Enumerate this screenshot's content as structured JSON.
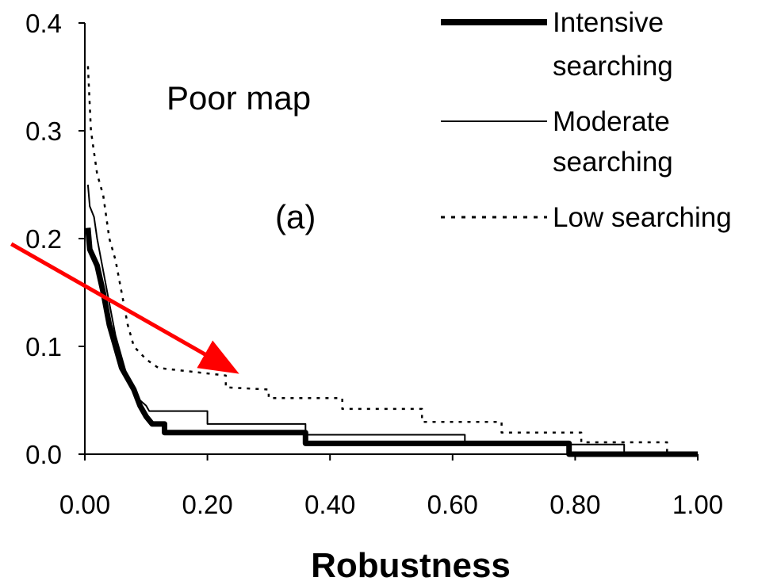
{
  "chart_data": {
    "type": "line",
    "xlabel": "Robustness",
    "ylabel": "",
    "xlim": [
      0,
      1
    ],
    "ylim": [
      0,
      0.4
    ],
    "x_ticks": [
      "0.00",
      "0.20",
      "0.40",
      "0.60",
      "0.80",
      "1.00"
    ],
    "y_ticks": [
      "0.0",
      "0.1",
      "0.2",
      "0.3",
      "0.4"
    ],
    "grid": false,
    "legend_position": "top-right",
    "annotations": [
      {
        "id": "poor_map",
        "text": "Poor map"
      },
      {
        "id": "panel",
        "text": "(a)"
      }
    ],
    "arrow": {
      "from": [
        -0.12,
        0.195
      ],
      "to": [
        0.235,
        0.08
      ],
      "color": "#ff0000"
    },
    "series": [
      {
        "name": "Intensive searching",
        "style": "thick",
        "color": "#000000",
        "points": [
          [
            0.005,
            0.21
          ],
          [
            0.008,
            0.19
          ],
          [
            0.02,
            0.175
          ],
          [
            0.03,
            0.15
          ],
          [
            0.04,
            0.12
          ],
          [
            0.05,
            0.1
          ],
          [
            0.06,
            0.08
          ],
          [
            0.07,
            0.07
          ],
          [
            0.08,
            0.06
          ],
          [
            0.09,
            0.045
          ],
          [
            0.1,
            0.035
          ],
          [
            0.11,
            0.028
          ],
          [
            0.13,
            0.028
          ],
          [
            0.13,
            0.02
          ],
          [
            0.36,
            0.02
          ],
          [
            0.36,
            0.01
          ],
          [
            0.79,
            0.01
          ],
          [
            0.79,
            0.0
          ],
          [
            1.0,
            0.0
          ]
        ]
      },
      {
        "name": "Moderate searching",
        "style": "thin",
        "color": "#000000",
        "points": [
          [
            0.005,
            0.25
          ],
          [
            0.008,
            0.23
          ],
          [
            0.015,
            0.22
          ],
          [
            0.02,
            0.2
          ],
          [
            0.03,
            0.17
          ],
          [
            0.04,
            0.14
          ],
          [
            0.05,
            0.11
          ],
          [
            0.06,
            0.09
          ],
          [
            0.07,
            0.07
          ],
          [
            0.08,
            0.06
          ],
          [
            0.09,
            0.05
          ],
          [
            0.1,
            0.045
          ],
          [
            0.105,
            0.04
          ],
          [
            0.2,
            0.04
          ],
          [
            0.2,
            0.028
          ],
          [
            0.36,
            0.028
          ],
          [
            0.36,
            0.018
          ],
          [
            0.62,
            0.018
          ],
          [
            0.62,
            0.009
          ],
          [
            0.88,
            0.009
          ],
          [
            0.88,
            0.0
          ],
          [
            1.0,
            0.0
          ]
        ]
      },
      {
        "name": "Low searching",
        "style": "dotted",
        "color": "#000000",
        "points": [
          [
            0.005,
            0.36
          ],
          [
            0.01,
            0.3
          ],
          [
            0.02,
            0.26
          ],
          [
            0.03,
            0.24
          ],
          [
            0.04,
            0.2
          ],
          [
            0.05,
            0.18
          ],
          [
            0.06,
            0.15
          ],
          [
            0.07,
            0.12
          ],
          [
            0.08,
            0.1
          ],
          [
            0.1,
            0.088
          ],
          [
            0.12,
            0.08
          ],
          [
            0.23,
            0.073
          ],
          [
            0.23,
            0.062
          ],
          [
            0.3,
            0.06
          ],
          [
            0.3,
            0.052
          ],
          [
            0.42,
            0.052
          ],
          [
            0.42,
            0.042
          ],
          [
            0.55,
            0.042
          ],
          [
            0.55,
            0.03
          ],
          [
            0.68,
            0.03
          ],
          [
            0.68,
            0.02
          ],
          [
            0.81,
            0.02
          ],
          [
            0.81,
            0.011
          ],
          [
            0.95,
            0.011
          ],
          [
            0.95,
            0.0
          ],
          [
            1.0,
            0.0
          ]
        ]
      }
    ]
  }
}
